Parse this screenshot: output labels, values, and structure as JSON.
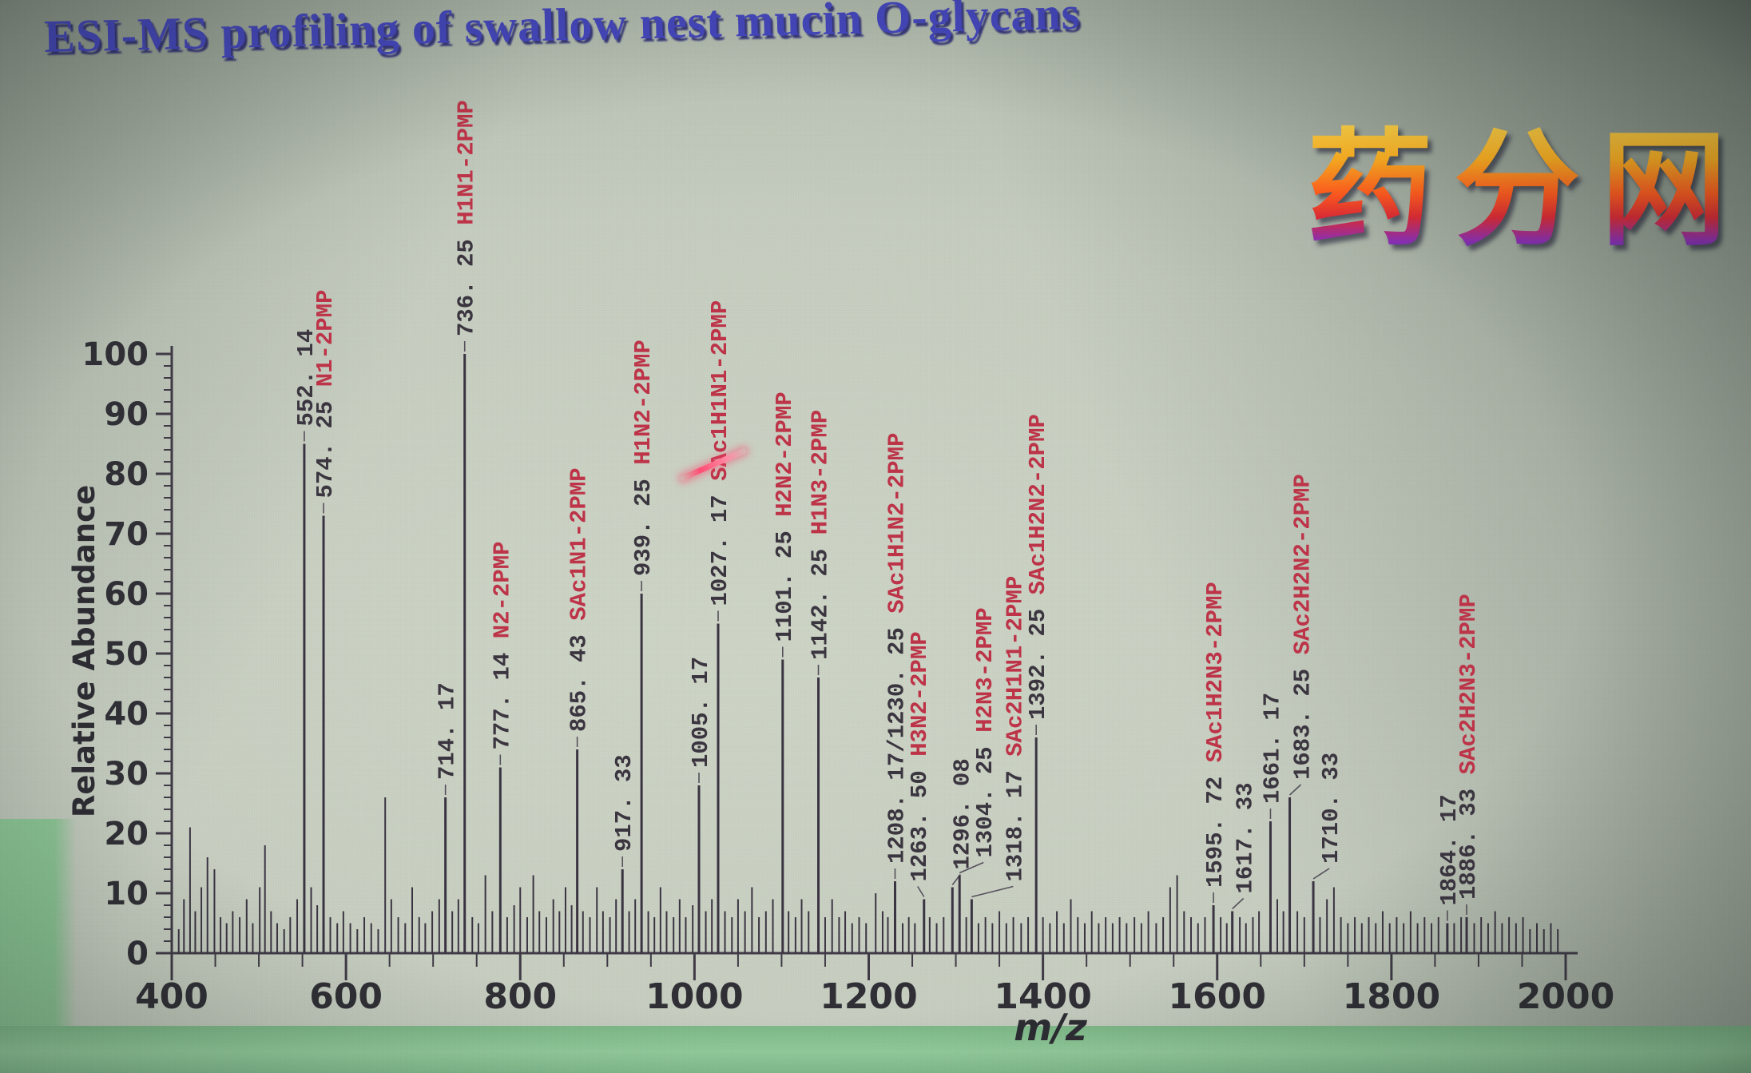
{
  "title": {
    "text": "ESI-MS profiling of swallow nest mucin O-glycans",
    "color": "#4648c2"
  },
  "watermark": {
    "text": "药分网",
    "gradient_top": "#ffd84d",
    "gradient_middle": "#ff5a1e",
    "gradient_bottom": "#3c2fd0"
  },
  "laser_pointer": {
    "color": "#ff4d73"
  },
  "chart_data": {
    "type": "line",
    "variant": "mass-spectrum-stick-plot",
    "xlabel": "m/z",
    "ylabel": "Relative Abundance",
    "xlim": [
      400,
      2000
    ],
    "ylim": [
      0,
      100
    ],
    "x_ticks": [
      400,
      600,
      800,
      1000,
      1200,
      1400,
      1600,
      1800,
      2000
    ],
    "y_ticks": [
      0,
      10,
      20,
      30,
      40,
      50,
      60,
      70,
      80,
      90,
      100
    ],
    "grid": false,
    "legend": "none",
    "trace_color": "#3a3442",
    "axis_color": "#3f3a46",
    "label_number_color": "#3b3540",
    "label_glycan_color": "#bd3348",
    "labeled_peaks": [
      {
        "mz": 552.14,
        "abundance": 85,
        "label": "552. 14",
        "glycan": ""
      },
      {
        "mz": 574.25,
        "abundance": 73,
        "label": "574. 25",
        "glycan": "N1-2PMP"
      },
      {
        "mz": 714.17,
        "abundance": 26,
        "label": "714. 17",
        "glycan": ""
      },
      {
        "mz": 736.25,
        "abundance": 100,
        "label": "736. 25",
        "glycan": "H1N1-2PMP"
      },
      {
        "mz": 777.14,
        "abundance": 31,
        "label": "777. 14",
        "glycan": "N2-2PMP"
      },
      {
        "mz": 865.43,
        "abundance": 34,
        "label": "865. 43",
        "glycan": "SAc1N1-2PMP"
      },
      {
        "mz": 917.33,
        "abundance": 14,
        "label": "917. 33",
        "glycan": ""
      },
      {
        "mz": 939.25,
        "abundance": 60,
        "label": "939. 25",
        "glycan": "H1N2-2PMP"
      },
      {
        "mz": 1005.17,
        "abundance": 28,
        "label": "1005. 17",
        "glycan": ""
      },
      {
        "mz": 1027.17,
        "abundance": 55,
        "label": "1027. 17",
        "glycan": "SAc1H1N1-2PMP"
      },
      {
        "mz": 1101.25,
        "abundance": 49,
        "label": "1101. 25",
        "glycan": "H2N2-2PMP"
      },
      {
        "mz": 1142.25,
        "abundance": 46,
        "label": "1142. 25",
        "glycan": "H1N3-2PMP"
      },
      {
        "mz": 1230.25,
        "abundance": 12,
        "label": "1208. 17/1230. 25",
        "glycan": "SAc1H1N2-2PMP"
      },
      {
        "mz": 1263.5,
        "abundance": 9,
        "label": "1263. 50",
        "glycan": "H3N2-2PMP",
        "dx": -8
      },
      {
        "mz": 1296.08,
        "abundance": 11,
        "label": "1296. 08",
        "glycan": "",
        "dx": 10
      },
      {
        "mz": 1304.25,
        "abundance": 13,
        "label": "1304. 25",
        "glycan": "H2N3-2PMP",
        "dx": 30
      },
      {
        "mz": 1318.17,
        "abundance": 9,
        "label": "1318. 17",
        "glycan": "SAc2H1N1-2PMP",
        "dx": 52
      },
      {
        "mz": 1392.25,
        "abundance": 36,
        "label": "1392. 25",
        "glycan": "SAc1H2N2-2PMP"
      },
      {
        "mz": 1595.72,
        "abundance": 8,
        "label": "1595. 72",
        "glycan": "SAc1H2N3-2PMP"
      },
      {
        "mz": 1617.33,
        "abundance": 7,
        "label": "1617. 33",
        "glycan": "",
        "dx": 14
      },
      {
        "mz": 1661.17,
        "abundance": 22,
        "label": "1661. 17",
        "glycan": ""
      },
      {
        "mz": 1683.25,
        "abundance": 26,
        "label": "1683. 25",
        "glycan": "SAc2H2N2-2PMP",
        "dx": 14
      },
      {
        "mz": 1710.33,
        "abundance": 12,
        "label": "1710. 33",
        "glycan": "",
        "dx": 20
      },
      {
        "mz": 1864.17,
        "abundance": 5,
        "label": "1864. 17",
        "glycan": ""
      },
      {
        "mz": 1886.33,
        "abundance": 6,
        "label": "1886. 33",
        "glycan": "SAc2H2N3-2PMP"
      }
    ],
    "noise_peaks": [
      [
        408,
        4
      ],
      [
        414,
        9
      ],
      [
        421,
        21
      ],
      [
        427,
        7
      ],
      [
        434,
        11
      ],
      [
        441,
        16
      ],
      [
        449,
        14
      ],
      [
        456,
        6
      ],
      [
        463,
        5
      ],
      [
        470,
        7
      ],
      [
        478,
        6
      ],
      [
        486,
        9
      ],
      [
        493,
        5
      ],
      [
        501,
        11
      ],
      [
        507,
        18
      ],
      [
        514,
        7
      ],
      [
        521,
        5
      ],
      [
        529,
        4
      ],
      [
        536,
        6
      ],
      [
        544,
        9
      ],
      [
        560,
        11
      ],
      [
        567,
        8
      ],
      [
        582,
        6
      ],
      [
        590,
        5
      ],
      [
        597,
        7
      ],
      [
        605,
        5
      ],
      [
        613,
        4
      ],
      [
        621,
        6
      ],
      [
        629,
        5
      ],
      [
        637,
        4
      ],
      [
        645,
        26
      ],
      [
        652,
        9
      ],
      [
        660,
        6
      ],
      [
        668,
        5
      ],
      [
        676,
        11
      ],
      [
        684,
        6
      ],
      [
        691,
        5
      ],
      [
        699,
        7
      ],
      [
        707,
        9
      ],
      [
        722,
        7
      ],
      [
        729,
        9
      ],
      [
        745,
        6
      ],
      [
        752,
        5
      ],
      [
        760,
        13
      ],
      [
        768,
        7
      ],
      [
        785,
        6
      ],
      [
        793,
        8
      ],
      [
        800,
        11
      ],
      [
        808,
        6
      ],
      [
        815,
        13
      ],
      [
        822,
        7
      ],
      [
        830,
        6
      ],
      [
        838,
        9
      ],
      [
        845,
        7
      ],
      [
        852,
        11
      ],
      [
        859,
        8
      ],
      [
        872,
        7
      ],
      [
        880,
        6
      ],
      [
        888,
        11
      ],
      [
        895,
        7
      ],
      [
        903,
        6
      ],
      [
        910,
        9
      ],
      [
        925,
        7
      ],
      [
        932,
        9
      ],
      [
        947,
        7
      ],
      [
        954,
        6
      ],
      [
        961,
        11
      ],
      [
        968,
        7
      ],
      [
        976,
        6
      ],
      [
        983,
        9
      ],
      [
        990,
        6
      ],
      [
        998,
        8
      ],
      [
        1013,
        7
      ],
      [
        1020,
        9
      ],
      [
        1035,
        7
      ],
      [
        1043,
        6
      ],
      [
        1050,
        9
      ],
      [
        1058,
        7
      ],
      [
        1066,
        11
      ],
      [
        1074,
        6
      ],
      [
        1082,
        7
      ],
      [
        1090,
        9
      ],
      [
        1108,
        7
      ],
      [
        1116,
        6
      ],
      [
        1123,
        9
      ],
      [
        1131,
        7
      ],
      [
        1150,
        6
      ],
      [
        1158,
        9
      ],
      [
        1166,
        6
      ],
      [
        1173,
        7
      ],
      [
        1181,
        5
      ],
      [
        1189,
        6
      ],
      [
        1197,
        5
      ],
      [
        1208,
        10
      ],
      [
        1216,
        7
      ],
      [
        1222,
        6
      ],
      [
        1239,
        5
      ],
      [
        1246,
        6
      ],
      [
        1253,
        5
      ],
      [
        1270,
        6
      ],
      [
        1278,
        5
      ],
      [
        1286,
        6
      ],
      [
        1312,
        6
      ],
      [
        1326,
        5
      ],
      [
        1334,
        6
      ],
      [
        1342,
        5
      ],
      [
        1350,
        7
      ],
      [
        1358,
        5
      ],
      [
        1366,
        6
      ],
      [
        1375,
        5
      ],
      [
        1383,
        6
      ],
      [
        1400,
        6
      ],
      [
        1408,
        5
      ],
      [
        1416,
        7
      ],
      [
        1424,
        5
      ],
      [
        1432,
        9
      ],
      [
        1440,
        6
      ],
      [
        1448,
        5
      ],
      [
        1456,
        7
      ],
      [
        1464,
        5
      ],
      [
        1472,
        6
      ],
      [
        1480,
        5
      ],
      [
        1488,
        6
      ],
      [
        1496,
        5
      ],
      [
        1505,
        6
      ],
      [
        1513,
        5
      ],
      [
        1521,
        7
      ],
      [
        1530,
        5
      ],
      [
        1538,
        6
      ],
      [
        1546,
        11
      ],
      [
        1554,
        13
      ],
      [
        1562,
        7
      ],
      [
        1570,
        6
      ],
      [
        1578,
        5
      ],
      [
        1586,
        6
      ],
      [
        1604,
        6
      ],
      [
        1611,
        5
      ],
      [
        1626,
        6
      ],
      [
        1633,
        5
      ],
      [
        1641,
        6
      ],
      [
        1648,
        7
      ],
      [
        1669,
        9
      ],
      [
        1676,
        7
      ],
      [
        1692,
        7
      ],
      [
        1700,
        6
      ],
      [
        1718,
        6
      ],
      [
        1726,
        9
      ],
      [
        1734,
        11
      ],
      [
        1742,
        6
      ],
      [
        1750,
        5
      ],
      [
        1758,
        6
      ],
      [
        1766,
        5
      ],
      [
        1774,
        6
      ],
      [
        1782,
        5
      ],
      [
        1790,
        7
      ],
      [
        1798,
        5
      ],
      [
        1806,
        6
      ],
      [
        1814,
        5
      ],
      [
        1822,
        7
      ],
      [
        1830,
        5
      ],
      [
        1838,
        6
      ],
      [
        1846,
        5
      ],
      [
        1854,
        6
      ],
      [
        1872,
        5
      ],
      [
        1880,
        6
      ],
      [
        1895,
        5
      ],
      [
        1903,
        6
      ],
      [
        1911,
        5
      ],
      [
        1919,
        7
      ],
      [
        1927,
        5
      ],
      [
        1935,
        6
      ],
      [
        1943,
        5
      ],
      [
        1951,
        6
      ],
      [
        1959,
        4
      ],
      [
        1967,
        5
      ],
      [
        1975,
        4
      ],
      [
        1983,
        5
      ],
      [
        1991,
        4
      ]
    ]
  }
}
